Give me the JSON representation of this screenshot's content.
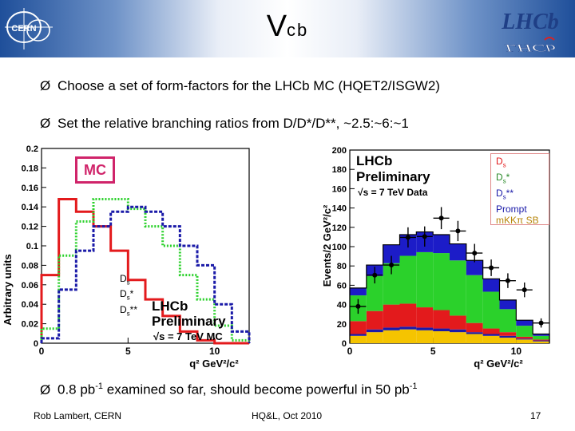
{
  "slide": {
    "title_main": "V",
    "title_sub": "cb",
    "bullets": [
      {
        "arrow": "Ø",
        "text": "Choose a set of form-factors for the LHCb MC (HQET2/ISGW2)"
      },
      {
        "arrow": "Ø",
        "text": "Set the relative branching ratios from D/D*/D**, ~2.5:~6:~1"
      },
      {
        "arrow": "Ø",
        "text_a": "0.8 pb",
        "sup_a": "-1",
        "text_b": " examined so far, should become powerful in 50 pb",
        "sup_b": "-1"
      }
    ],
    "logos": {
      "left": "CERN",
      "right": "LHCb"
    },
    "footer": {
      "author": "Rob Lambert, CERN",
      "conference": "HQ&L, Oct 2010",
      "page": "17"
    }
  },
  "colors": {
    "red": "#e31a1c",
    "green": "#2bd12b",
    "blue": "#1a1aa8",
    "accent": "#d0246a",
    "yellow": "#f5c400"
  },
  "left_plot": {
    "mc_label": "MC",
    "lhcb_label": "LHCb",
    "prelim_label": "Preliminary",
    "energy_label": "√s = 7 TeV MC",
    "ylabel": "Arbitrary units",
    "xlabel": "q² GeV²/c²",
    "legend": [
      {
        "main": "D",
        "sub": "s",
        "sup": ""
      },
      {
        "main": "D",
        "sub": "s",
        "sup": "*"
      },
      {
        "main": "D",
        "sub": "s",
        "sup": "**"
      }
    ]
  },
  "right_plot": {
    "lhcb_label": "LHCb",
    "prelim_label": "Preliminary",
    "energy_label": "√s = 7 TeV Data",
    "ylabel": "Events/2 GeV²/c²",
    "xlabel": "q² GeV²/c²",
    "legend": [
      {
        "main": "D",
        "sub": "s",
        "sup": ""
      },
      {
        "main": "D",
        "sub": "s",
        "sup": "*"
      },
      {
        "main": "D",
        "sub": "s",
        "sup": "**"
      },
      {
        "main": "Prompt",
        "sub": "",
        "sup": ""
      },
      {
        "main": "mKKπ SB",
        "sub": "",
        "sup": ""
      }
    ]
  },
  "chart_data": [
    {
      "type": "line",
      "title": "",
      "xlabel": "q² GeV²/c²",
      "ylabel": "Arbitrary units",
      "xlim": [
        0,
        12
      ],
      "ylim": [
        0,
        0.2
      ],
      "xticks": [
        "0",
        "5",
        "10"
      ],
      "yticks": [
        "0",
        "0.02",
        "0.04",
        "0.06",
        "0.08",
        "0.1",
        "0.12",
        "0.14",
        "0.16",
        "0.18",
        "0.2"
      ],
      "bin_width": 1,
      "series": [
        {
          "name": "Ds",
          "style": "solid",
          "values": [
            0.07,
            0.148,
            0.135,
            0.12,
            0.095,
            0.065,
            0.045,
            0.028,
            0.012,
            0.003,
            0,
            0
          ]
        },
        {
          "name": "Ds*",
          "style": "dotted",
          "values": [
            0.015,
            0.09,
            0.125,
            0.148,
            0.148,
            0.138,
            0.12,
            0.1,
            0.07,
            0.045,
            0.018,
            0.003
          ]
        },
        {
          "name": "Ds**",
          "style": "dashed",
          "values": [
            0.005,
            0.055,
            0.095,
            0.12,
            0.135,
            0.14,
            0.135,
            0.12,
            0.1,
            0.08,
            0.04,
            0.012
          ]
        }
      ]
    },
    {
      "type": "bar",
      "stacked": true,
      "title": "",
      "xlabel": "q² GeV²/c²",
      "ylabel": "Events/2 GeV²/c²",
      "xlim": [
        0,
        12
      ],
      "ylim": [
        0,
        210
      ],
      "xticks": [
        "0",
        "5",
        "10"
      ],
      "yticks": [
        "0",
        "20",
        "40",
        "60",
        "80",
        "100",
        "120",
        "140",
        "160",
        "180",
        "200"
      ],
      "bin_width": 1,
      "categories": [
        "0.5",
        "1.5",
        "2.5",
        "3.5",
        "4.5",
        "5.5",
        "6.5",
        "7.5",
        "8.5",
        "9.5",
        "10.5",
        "11.5"
      ],
      "series": [
        {
          "name": "mKKπ SB",
          "values": [
            8,
            12,
            14,
            15,
            14,
            13,
            12,
            10,
            8,
            6,
            4,
            2
          ]
        },
        {
          "name": "Prompt",
          "values": [
            2,
            3,
            3,
            3,
            3,
            3,
            3,
            2,
            2,
            2,
            1,
            1
          ]
        },
        {
          "name": "Ds",
          "values": [
            14,
            20,
            25,
            25,
            22,
            20,
            15,
            10,
            6,
            4,
            2,
            1
          ]
        },
        {
          "name": "Ds*",
          "values": [
            28,
            38,
            45,
            52,
            60,
            62,
            60,
            52,
            40,
            25,
            12,
            4
          ]
        },
        {
          "name": "Ds**",
          "values": [
            8,
            12,
            20,
            23,
            22,
            20,
            18,
            16,
            14,
            10,
            6,
            2
          ]
        }
      ],
      "data_points": {
        "name": "√s = 7 TeV Data",
        "x": [
          0.5,
          1.5,
          2.5,
          3.5,
          4.5,
          5.5,
          6.5,
          7.5,
          8.5,
          9.5,
          10.5,
          11.5
        ],
        "y": [
          40,
          74,
          85,
          115,
          116,
          136,
          122,
          98,
          82,
          68,
          58,
          22
        ],
        "err": [
          8,
          9,
          10,
          11,
          11,
          12,
          11,
          10,
          9,
          8,
          8,
          5
        ]
      }
    }
  ]
}
